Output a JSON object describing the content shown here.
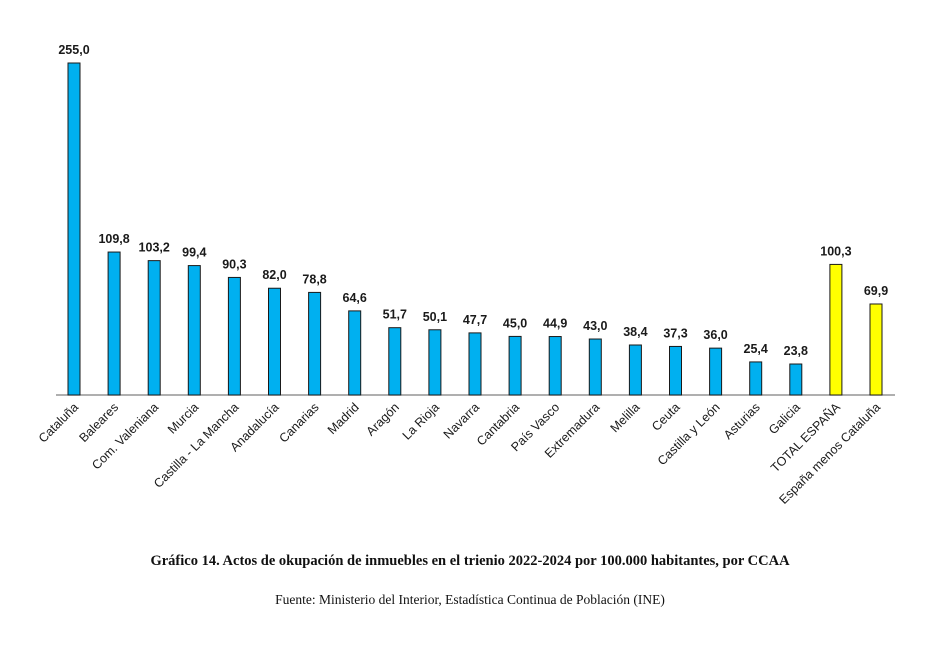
{
  "chart_data": {
    "type": "bar",
    "categories": [
      "Cataluña",
      "Baleares",
      "Com. Valeniana",
      "Murcia",
      "Castilla - La Mancha",
      "Anadalucía",
      "Canarias",
      "Madrid",
      "Aragón",
      "La Rioja",
      "Navarra",
      "Cantabria",
      "País Vasco",
      "Extremadura",
      "Melilla",
      "Ceuta",
      "Castilla y León",
      "Asturias",
      "Galicia",
      "TOTAL ESPAÑA",
      "España menos Cataluña"
    ],
    "values": [
      255.0,
      109.8,
      103.2,
      99.4,
      90.3,
      82.0,
      78.8,
      64.6,
      51.7,
      50.1,
      47.7,
      45.0,
      44.9,
      43.0,
      38.4,
      37.3,
      36.0,
      25.4,
      23.8,
      100.3,
      69.9
    ],
    "value_labels": [
      "255,0",
      "109,8",
      "103,2",
      "99,4",
      "90,3",
      "82,0",
      "78,8",
      "64,6",
      "51,7",
      "50,1",
      "47,7",
      "45,0",
      "44,9",
      "43,0",
      "38,4",
      "37,3",
      "36,0",
      "25,4",
      "23,8",
      "100,3",
      "69,9"
    ],
    "bar_colors": [
      "#00b0f0",
      "#00b0f0",
      "#00b0f0",
      "#00b0f0",
      "#00b0f0",
      "#00b0f0",
      "#00b0f0",
      "#00b0f0",
      "#00b0f0",
      "#00b0f0",
      "#00b0f0",
      "#00b0f0",
      "#00b0f0",
      "#00b0f0",
      "#00b0f0",
      "#00b0f0",
      "#00b0f0",
      "#00b0f0",
      "#00b0f0",
      "#ffff00",
      "#ffff00"
    ],
    "ylim": [
      0,
      255
    ],
    "title": "Gráfico 14. Actos de okupación de inmuebles en el trienio 2022-2024 por 100.000 habitantes, por CCAA",
    "source": "Fuente: Ministerio del Interior, Estadística Continua de Población (INE)",
    "xlabel": "",
    "ylabel": ""
  }
}
